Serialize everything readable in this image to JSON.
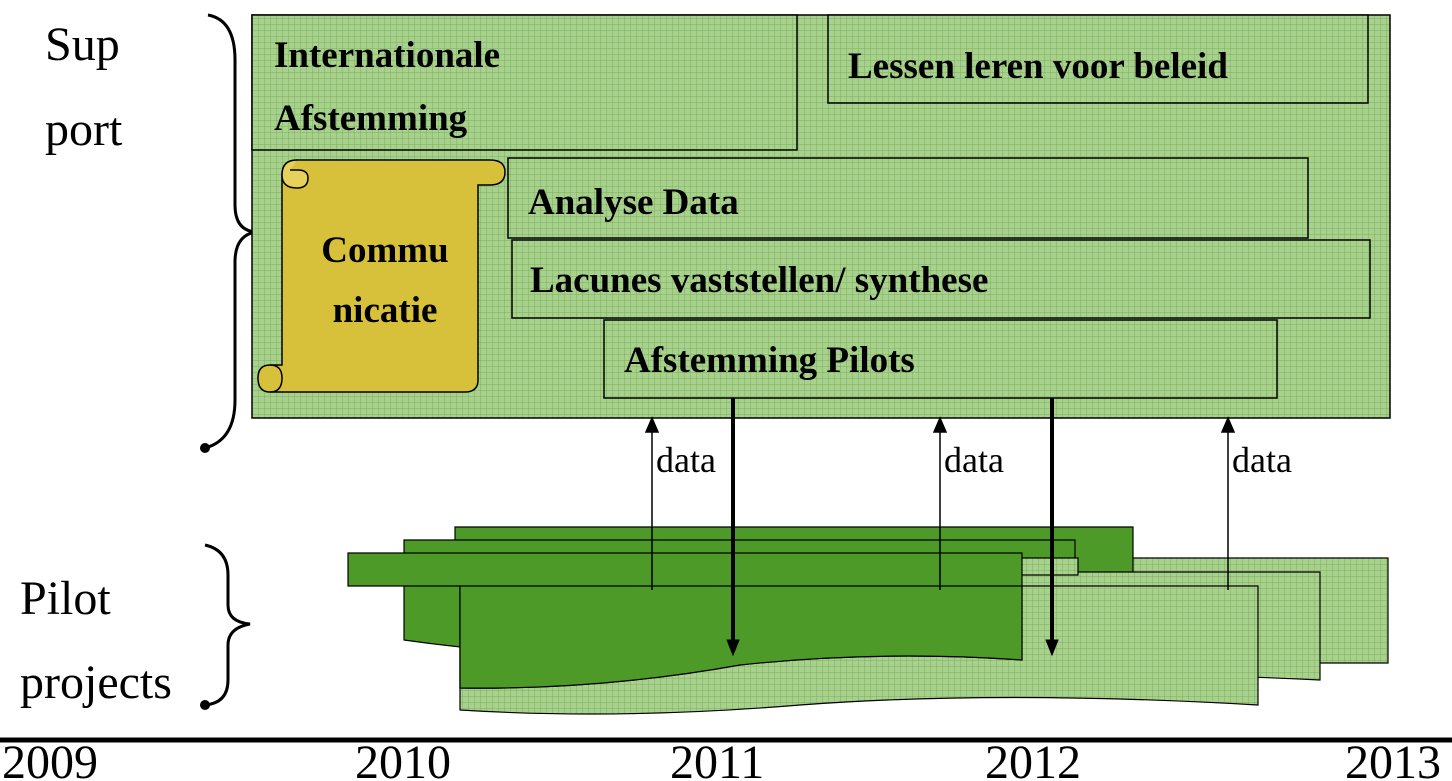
{
  "sections": {
    "support": {
      "label": [
        "Sup",
        "port"
      ]
    },
    "pilots": {
      "label": [
        "Pilot",
        "projects"
      ]
    }
  },
  "boxes": [
    {
      "label": [
        "Internationale",
        "Afstemming"
      ]
    },
    {
      "label": [
        "Lessen leren voor beleid"
      ]
    },
    {
      "label": [
        "Commu",
        "nicatie"
      ]
    },
    {
      "label": [
        "Analyse Data"
      ]
    },
    {
      "label": [
        "Lacunes vaststellen/ synthese"
      ]
    },
    {
      "label": [
        "Afstemming Pilots"
      ]
    }
  ],
  "arrows": {
    "data_labels": [
      "data",
      "data",
      "data"
    ]
  },
  "timeline": {
    "years": [
      "2009",
      "2010",
      "2011",
      "2012",
      "2013"
    ]
  }
}
